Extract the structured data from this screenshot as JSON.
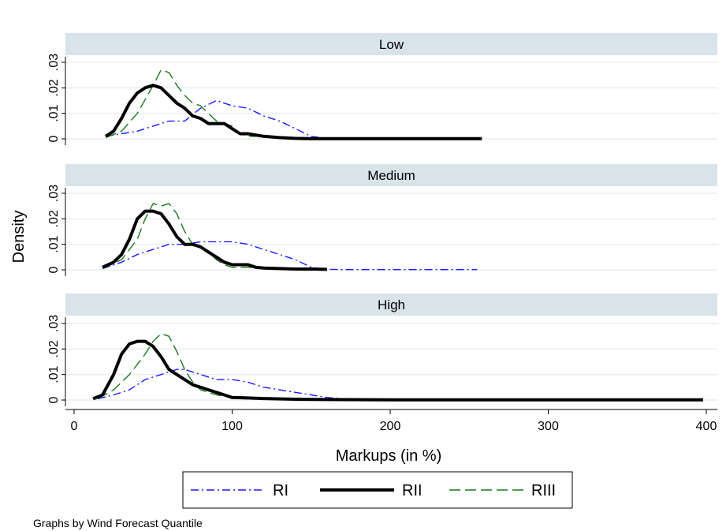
{
  "chart_data": {
    "type": "line",
    "ylabel": "Density",
    "xlabel": "Markups (in %)",
    "note": "Graphs by Wind Forecast Quantile",
    "xlim": [
      0,
      400
    ],
    "ylim": [
      0,
      0.03
    ],
    "x_ticks": [
      0,
      100,
      200,
      300,
      400
    ],
    "y_ticks": [
      0,
      0.01,
      0.02,
      0.03
    ],
    "y_tick_labels": [
      "0",
      ".01",
      ".02",
      ".03"
    ],
    "grid": true,
    "legend": {
      "placement": "bottom",
      "entries": [
        "RI",
        "RII",
        "RIII"
      ]
    },
    "series_styles": {
      "RI": {
        "color": "#1a1aff",
        "dash": "10,4,2,4",
        "width": 1.4
      },
      "RII": {
        "color": "#000000",
        "dash": "",
        "width": 4
      },
      "RIII": {
        "color": "#1a7a1a",
        "dash": "14,6",
        "width": 1.4
      }
    },
    "panels": [
      {
        "title": "Low",
        "series": [
          {
            "name": "RI",
            "points": [
              [
                20,
                0.001
              ],
              [
                30,
                0.002
              ],
              [
                40,
                0.003
              ],
              [
                50,
                0.005
              ],
              [
                60,
                0.007
              ],
              [
                70,
                0.007
              ],
              [
                80,
                0.012
              ],
              [
                90,
                0.015
              ],
              [
                100,
                0.013
              ],
              [
                110,
                0.012
              ],
              [
                120,
                0.009
              ],
              [
                130,
                0.007
              ],
              [
                140,
                0.004
              ],
              [
                150,
                0.001
              ],
              [
                160,
                0.0002
              ]
            ]
          },
          {
            "name": "RII",
            "points": [
              [
                20,
                0.001
              ],
              [
                25,
                0.003
              ],
              [
                30,
                0.008
              ],
              [
                35,
                0.014
              ],
              [
                40,
                0.018
              ],
              [
                45,
                0.02
              ],
              [
                50,
                0.021
              ],
              [
                55,
                0.02
              ],
              [
                60,
                0.017
              ],
              [
                65,
                0.014
              ],
              [
                70,
                0.012
              ],
              [
                75,
                0.009
              ],
              [
                80,
                0.008
              ],
              [
                85,
                0.006
              ],
              [
                90,
                0.006
              ],
              [
                95,
                0.006
              ],
              [
                100,
                0.004
              ],
              [
                105,
                0.002
              ],
              [
                110,
                0.002
              ],
              [
                120,
                0.001
              ],
              [
                130,
                0.0005
              ],
              [
                140,
                0.0002
              ],
              [
                150,
                0.0001
              ],
              [
                180,
                0.0001
              ],
              [
                200,
                0.0001
              ],
              [
                258,
                0.0001
              ]
            ]
          },
          {
            "name": "RIII",
            "points": [
              [
                20,
                0.0005
              ],
              [
                30,
                0.003
              ],
              [
                40,
                0.01
              ],
              [
                50,
                0.021
              ],
              [
                55,
                0.027
              ],
              [
                60,
                0.026
              ],
              [
                65,
                0.021
              ],
              [
                70,
                0.017
              ],
              [
                75,
                0.014
              ],
              [
                80,
                0.013
              ],
              [
                85,
                0.01
              ],
              [
                90,
                0.007
              ],
              [
                95,
                0.006
              ],
              [
                100,
                0.005
              ],
              [
                105,
                0.002
              ],
              [
                110,
                0.001
              ],
              [
                120,
                0.001
              ],
              [
                130,
                0.0003
              ]
            ]
          }
        ]
      },
      {
        "title": "Medium",
        "series": [
          {
            "name": "RI",
            "points": [
              [
                18,
                0.0005
              ],
              [
                30,
                0.003
              ],
              [
                40,
                0.006
              ],
              [
                50,
                0.008
              ],
              [
                60,
                0.01
              ],
              [
                70,
                0.01
              ],
              [
                80,
                0.011
              ],
              [
                90,
                0.011
              ],
              [
                100,
                0.011
              ],
              [
                110,
                0.01
              ],
              [
                120,
                0.008
              ],
              [
                130,
                0.006
              ],
              [
                140,
                0.004
              ],
              [
                150,
                0.001
              ],
              [
                160,
                0.0002
              ],
              [
                170,
                0.0001
              ],
              [
                200,
                0.0001
              ],
              [
                230,
                0.0001
              ],
              [
                255,
                0.0001
              ]
            ]
          },
          {
            "name": "RII",
            "points": [
              [
                18,
                0.001
              ],
              [
                25,
                0.003
              ],
              [
                30,
                0.006
              ],
              [
                35,
                0.012
              ],
              [
                40,
                0.02
              ],
              [
                45,
                0.023
              ],
              [
                50,
                0.023
              ],
              [
                55,
                0.022
              ],
              [
                60,
                0.018
              ],
              [
                65,
                0.013
              ],
              [
                70,
                0.01
              ],
              [
                75,
                0.01
              ],
              [
                80,
                0.009
              ],
              [
                85,
                0.007
              ],
              [
                90,
                0.005
              ],
              [
                95,
                0.003
              ],
              [
                100,
                0.002
              ],
              [
                105,
                0.002
              ],
              [
                110,
                0.002
              ],
              [
                115,
                0.001
              ],
              [
                120,
                0.0007
              ],
              [
                130,
                0.0005
              ],
              [
                140,
                0.0003
              ],
              [
                150,
                0.0003
              ],
              [
                160,
                0.0002
              ]
            ]
          },
          {
            "name": "RIII",
            "points": [
              [
                18,
                0.0005
              ],
              [
                30,
                0.004
              ],
              [
                40,
                0.012
              ],
              [
                45,
                0.02
              ],
              [
                50,
                0.026
              ],
              [
                55,
                0.025
              ],
              [
                60,
                0.026
              ],
              [
                65,
                0.022
              ],
              [
                70,
                0.015
              ],
              [
                75,
                0.01
              ],
              [
                80,
                0.009
              ],
              [
                85,
                0.007
              ],
              [
                90,
                0.004
              ],
              [
                95,
                0.002
              ],
              [
                100,
                0.001
              ],
              [
                110,
                0.001
              ],
              [
                120,
                0.0007
              ],
              [
                130,
                0.0004
              ],
              [
                140,
                0.0003
              ],
              [
                160,
                0.0002
              ]
            ]
          }
        ]
      },
      {
        "title": "High",
        "series": [
          {
            "name": "RI",
            "points": [
              [
                15,
                0.0005
              ],
              [
                25,
                0.002
              ],
              [
                35,
                0.004
              ],
              [
                45,
                0.008
              ],
              [
                55,
                0.01
              ],
              [
                60,
                0.011
              ],
              [
                65,
                0.012
              ],
              [
                70,
                0.012
              ],
              [
                80,
                0.01
              ],
              [
                90,
                0.008
              ],
              [
                100,
                0.008
              ],
              [
                110,
                0.007
              ],
              [
                120,
                0.005
              ],
              [
                130,
                0.004
              ],
              [
                140,
                0.003
              ],
              [
                150,
                0.002
              ],
              [
                160,
                0.001
              ],
              [
                170,
                0.0005
              ],
              [
                180,
                0.0002
              ]
            ]
          },
          {
            "name": "RII",
            "points": [
              [
                12,
                0.0005
              ],
              [
                18,
                0.002
              ],
              [
                25,
                0.01
              ],
              [
                30,
                0.018
              ],
              [
                35,
                0.022
              ],
              [
                40,
                0.023
              ],
              [
                45,
                0.023
              ],
              [
                50,
                0.021
              ],
              [
                55,
                0.017
              ],
              [
                60,
                0.012
              ],
              [
                65,
                0.01
              ],
              [
                70,
                0.008
              ],
              [
                75,
                0.006
              ],
              [
                80,
                0.005
              ],
              [
                85,
                0.004
              ],
              [
                90,
                0.003
              ],
              [
                95,
                0.002
              ],
              [
                100,
                0.001
              ],
              [
                110,
                0.0008
              ],
              [
                120,
                0.0006
              ],
              [
                140,
                0.0003
              ],
              [
                160,
                0.0002
              ],
              [
                200,
                0.0001
              ],
              [
                250,
                0.0001
              ],
              [
                300,
                0.0001
              ],
              [
                350,
                0.0001
              ],
              [
                398,
                0.0001
              ]
            ]
          },
          {
            "name": "RIII",
            "points": [
              [
                15,
                0.0005
              ],
              [
                25,
                0.004
              ],
              [
                35,
                0.01
              ],
              [
                45,
                0.018
              ],
              [
                50,
                0.023
              ],
              [
                55,
                0.026
              ],
              [
                60,
                0.025
              ],
              [
                65,
                0.019
              ],
              [
                70,
                0.012
              ],
              [
                75,
                0.007
              ],
              [
                80,
                0.004
              ],
              [
                90,
                0.002
              ],
              [
                100,
                0.001
              ],
              [
                120,
                0.0005
              ],
              [
                140,
                0.0003
              ],
              [
                150,
                0.0002
              ]
            ]
          }
        ]
      }
    ]
  }
}
